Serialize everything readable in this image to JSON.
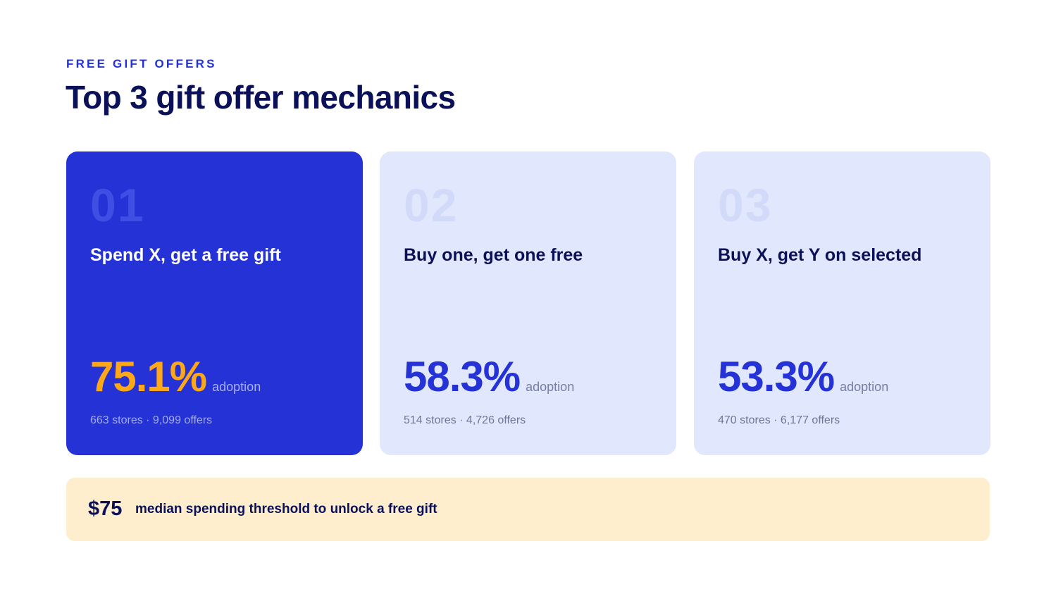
{
  "header": {
    "eyebrow": "FREE GIFT OFFERS",
    "title": "Top 3 gift offer mechanics"
  },
  "cards": [
    {
      "number": "01",
      "title": "Spend X, get a free gift",
      "adoption": "75.1%",
      "unit": "adoption",
      "meta": "663 stores · 9,099 offers",
      "highlight_color": "#FFA817"
    },
    {
      "number": "02",
      "title": "Buy one, get one free",
      "adoption": "58.3%",
      "unit": "adoption",
      "meta": "514 stores · 4,726 offers"
    },
    {
      "number": "03",
      "title": "Buy X, get Y on selected",
      "adoption": "53.3%",
      "unit": "adoption",
      "meta": "470 stores · 6,177 offers"
    }
  ],
  "banner": {
    "value": "$75",
    "text": "median spending threshold to unlock a free gift"
  },
  "colors": {
    "primary": "#2532D6",
    "navy": "#0B1158",
    "card_light": "#E1E7FC",
    "accent": "#FFA817",
    "banner_bg": "#FFEECE"
  }
}
